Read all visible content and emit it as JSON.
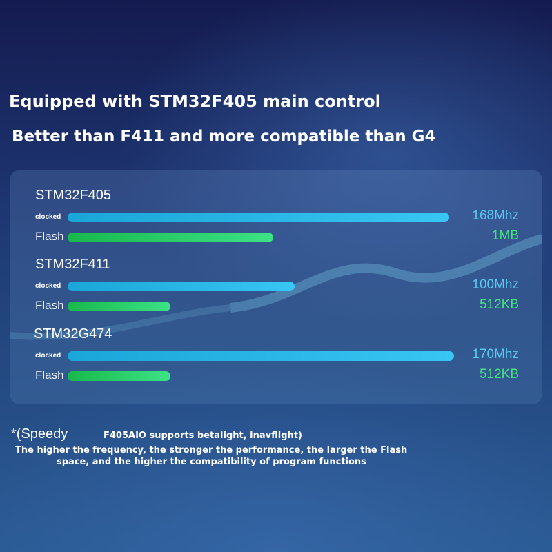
{
  "headline": "Equipped with STM32F405 main control",
  "subheadline": "Better than F411 and more compatible than G4",
  "chart_data": {
    "type": "bar",
    "orientation": "horizontal",
    "groups": [
      {
        "name": "STM32F405",
        "metrics": [
          {
            "label": "clocked",
            "value": 168,
            "display": "168Mhz"
          },
          {
            "label": "Flash",
            "value": 1024,
            "display": "1MB"
          }
        ]
      },
      {
        "name": "STM32F411",
        "metrics": [
          {
            "label": "clocked",
            "value": 100,
            "display": "100Mhz"
          },
          {
            "label": "Flash",
            "value": 512,
            "display": "512KB"
          }
        ]
      },
      {
        "name": "STM32G474",
        "metrics": [
          {
            "label": "clocked",
            "value": 170,
            "display": "170Mhz"
          },
          {
            "label": "Flash",
            "value": 512,
            "display": "512KB"
          }
        ]
      }
    ],
    "colors": {
      "clocked": "#38c6f4",
      "Flash": "#3de286"
    }
  },
  "footnote": {
    "prefix": "*(Speedy",
    "support": "F405AIO supports betalight, inavflight)",
    "line1": "The higher the frequency, the stronger the performance, the larger the Flash",
    "line2": "space, and the higher the compatibility of program functions"
  }
}
